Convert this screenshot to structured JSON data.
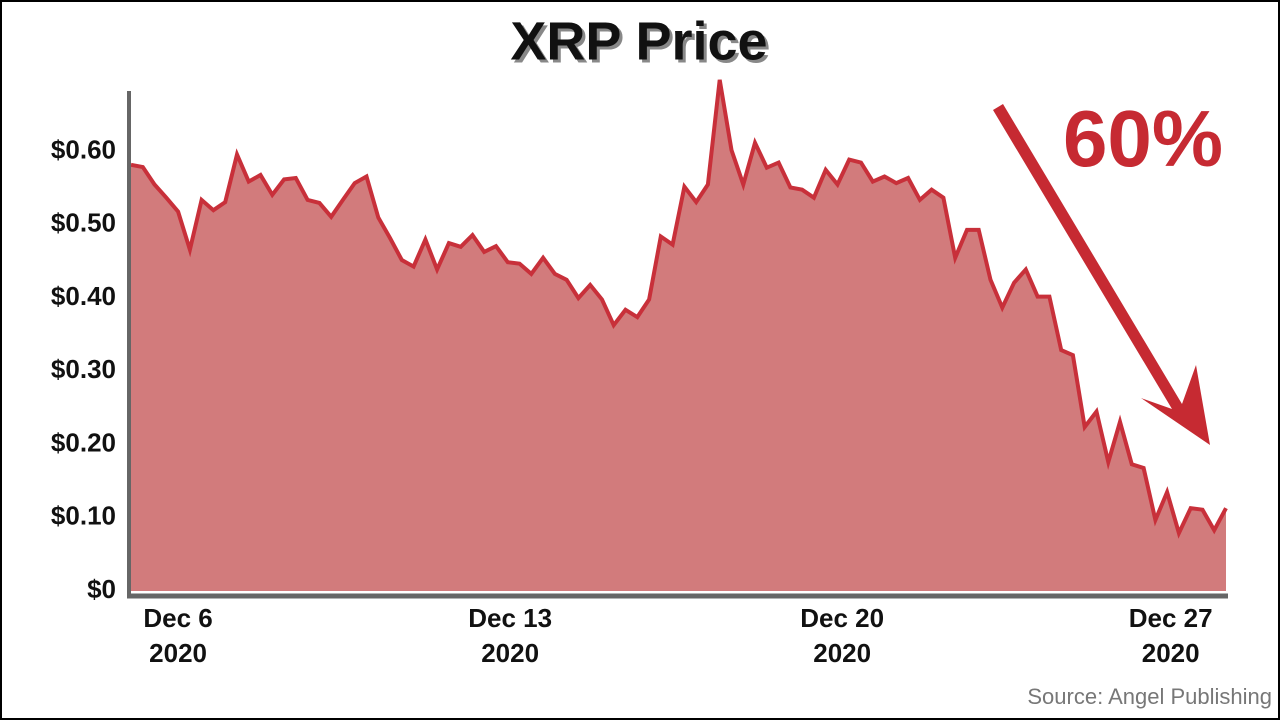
{
  "chart_data": {
    "type": "area",
    "title": "XRP Price",
    "annotation": "60%",
    "source": "Source: Angel Publishing",
    "color": "#d27b7c",
    "line_color": "#c8303a",
    "values": [
      0.582,
      0.579,
      0.555,
      0.537,
      0.518,
      0.466,
      0.534,
      0.52,
      0.531,
      0.596,
      0.559,
      0.568,
      0.541,
      0.562,
      0.564,
      0.534,
      0.53,
      0.511,
      0.534,
      0.557,
      0.566,
      0.51,
      0.482,
      0.452,
      0.443,
      0.48,
      0.439,
      0.475,
      0.47,
      0.486,
      0.463,
      0.471,
      0.449,
      0.447,
      0.433,
      0.455,
      0.433,
      0.425,
      0.4,
      0.418,
      0.398,
      0.363,
      0.384,
      0.374,
      0.398,
      0.484,
      0.473,
      0.552,
      0.531,
      0.555,
      0.698,
      0.602,
      0.555,
      0.612,
      0.578,
      0.585,
      0.551,
      0.548,
      0.537,
      0.575,
      0.555,
      0.589,
      0.585,
      0.559,
      0.566,
      0.557,
      0.564,
      0.534,
      0.548,
      0.537,
      0.455,
      0.493,
      0.493,
      0.425,
      0.387,
      0.421,
      0.439,
      0.402,
      0.402,
      0.329,
      0.322,
      0.224,
      0.245,
      0.176,
      0.231,
      0.173,
      0.168,
      0.097,
      0.135,
      0.079,
      0.113,
      0.111,
      0.083,
      0.113
    ],
    "xlim": [
      0,
      93
    ],
    "xticks": [
      {
        "value": 4,
        "label": "Dec 6 2020"
      },
      {
        "value": 32.2,
        "label": "Dec 13 2020"
      },
      {
        "value": 60.4,
        "label": "Dec 20 2020"
      },
      {
        "value": 88.3,
        "label": "Dec 27 2020"
      }
    ],
    "ylim": [
      0,
      0.68
    ],
    "yticks": [
      {
        "value": 0,
        "label": "$0"
      },
      {
        "value": 0.1,
        "label": "$0.10"
      },
      {
        "value": 0.2,
        "label": "$0.20"
      },
      {
        "value": 0.3,
        "label": "$0.30"
      },
      {
        "value": 0.4,
        "label": "$0.40"
      },
      {
        "value": 0.5,
        "label": "$0.50"
      },
      {
        "value": 0.6,
        "label": "$0.60"
      }
    ]
  }
}
